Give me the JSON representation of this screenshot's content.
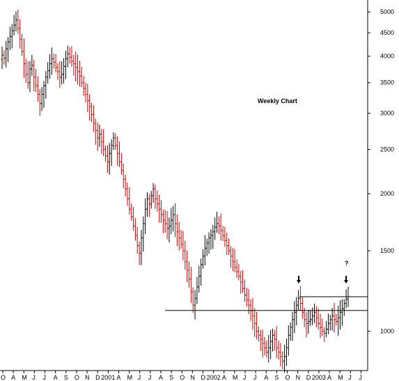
{
  "chart_data": {
    "type": "ohlc",
    "title": "",
    "annotation": "Weekly Chart",
    "question_mark": "?",
    "xlabel": "",
    "ylabel": "",
    "y_scale": "log",
    "ylim": [
      820,
      5200
    ],
    "y_ticks": [
      {
        "value": 5000,
        "label": "5000"
      },
      {
        "value": 4500,
        "label": "4500"
      },
      {
        "value": 4000,
        "label": "4000"
      },
      {
        "value": 3500,
        "label": "3500"
      },
      {
        "value": 3000,
        "label": "3000"
      },
      {
        "value": 2500,
        "label": "2500"
      },
      {
        "value": 2000,
        "label": "2000"
      },
      {
        "value": 1500,
        "label": "1500"
      },
      {
        "value": 1000,
        "label": "1000"
      }
    ],
    "x_ticks": [
      "O",
      "A",
      "M",
      "J",
      "J",
      "A",
      "S",
      "O",
      "N",
      "D",
      "2001",
      "A",
      "M",
      "J",
      "J",
      "A",
      "S",
      "O",
      "N",
      "D",
      "2002",
      "A",
      "M",
      "J",
      "J",
      "A",
      "S",
      "O",
      "N",
      "D",
      "2003",
      "A",
      "M",
      "J",
      "J"
    ],
    "colors": {
      "up": "#000000",
      "down": "#cc0000",
      "lines": "#000000"
    },
    "support_lines": [
      1110,
      1190
    ],
    "arrows": [
      "Nov 2002 high",
      "May 2003 high"
    ],
    "series": [
      {
        "values": [
          4020,
          3960,
          4150,
          4300,
          4420,
          4550,
          4680,
          4800,
          4600,
          4350,
          4100,
          3850,
          3650,
          3500,
          3750,
          3820,
          3600,
          3450,
          3300,
          3150,
          3300,
          3450,
          3600,
          3720,
          3850,
          3950,
          3880,
          3780,
          3700,
          3600,
          3650,
          3800,
          3950,
          4050,
          3980,
          3900,
          3850,
          3780,
          3700,
          3620,
          3500,
          3400,
          3300,
          3200,
          3100,
          2980,
          2850,
          2750,
          2650,
          2700,
          2600,
          2500,
          2420,
          2350,
          2450,
          2550,
          2650,
          2550,
          2450,
          2350,
          2250,
          2150,
          2050,
          1950,
          1850,
          1780,
          1700,
          1620,
          1540,
          1480,
          1600,
          1720,
          1850,
          1950,
          1900,
          1980,
          2050,
          1950,
          1900,
          1850,
          1800,
          1750,
          1720,
          1680,
          1700,
          1750,
          1800,
          1720,
          1650,
          1600,
          1550,
          1500,
          1420,
          1360,
          1300,
          1220,
          1140,
          1180,
          1250,
          1320,
          1400,
          1460,
          1520,
          1560,
          1600,
          1620,
          1650,
          1690,
          1720,
          1700,
          1660,
          1620,
          1580,
          1540,
          1500,
          1460,
          1420,
          1380,
          1350,
          1320,
          1280,
          1240,
          1200,
          1170,
          1140,
          1110,
          1080,
          1040,
          1000,
          980,
          960,
          940,
          920,
          900,
          920,
          950,
          980,
          960,
          920,
          900,
          880,
          860,
          880,
          920,
          980,
          1020,
          1060,
          1100,
          1140,
          1180,
          1150,
          1100,
          1060,
          1040,
          1050,
          1060,
          1080,
          1100,
          1070,
          1040,
          1020,
          1000,
          990,
          1010,
          1040,
          1060,
          1080,
          1060,
          1050,
          1070,
          1100,
          1120,
          1150,
          1175,
          1190
        ]
      }
    ]
  }
}
